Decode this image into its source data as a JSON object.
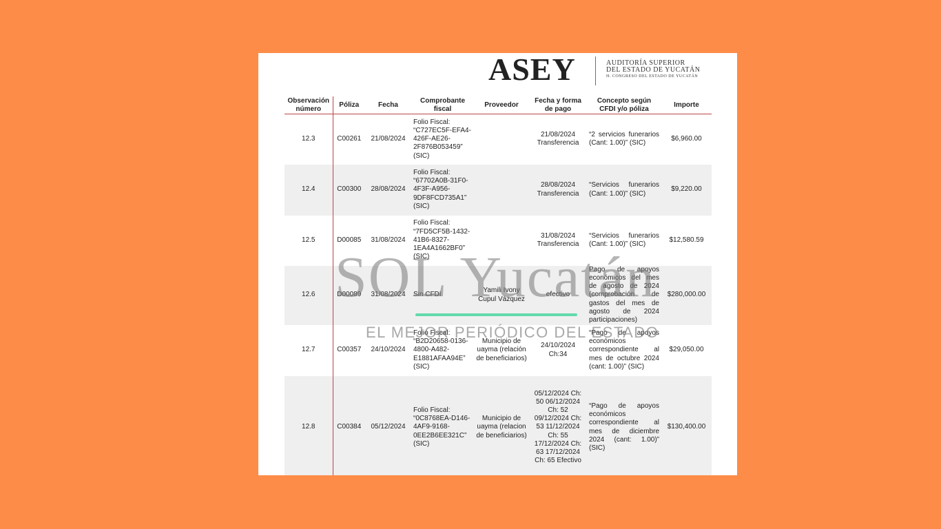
{
  "header": {
    "logo": "ASEY",
    "line1": "AUDITORÍA SUPERIOR",
    "line2": "DEL ESTADO DE YUCATÁN",
    "line3": "H. CONGRESO DEL ESTADO DE YUCATÁN"
  },
  "table": {
    "columns": [
      "Observación número",
      "Póliza",
      "Fecha",
      "Comprobante fiscal",
      "Proveedor",
      "Fecha y forma de pago",
      "Concepto según CFDI y/o póliza",
      "Importe"
    ],
    "rows": [
      {
        "observacion": "12.3",
        "poliza": "C00261",
        "fecha": "21/08/2024",
        "comprobante": "Folio Fiscal: “C727EC5F-EFA4-426F-AE26-2F876B053459” (SIC)",
        "pago": "21/08/2024 Transferencia",
        "concepto": "“2 servicios funerarios (Cant: 1.00)” (SIC)",
        "importe": "$6,960.00"
      },
      {
        "observacion": "12.4",
        "poliza": "C00300",
        "fecha": "28/08/2024",
        "comprobante": "Folio Fiscal: “67702A0B-31F0-4F3F-A956-9DF8FCD735A1” (SIC)",
        "pago": "28/08/2024 Transferencia",
        "concepto": "“Servicios funerarios (Cant: 1.00)” (SIC)",
        "importe": "$9,220.00"
      },
      {
        "observacion": "12.5",
        "poliza": "D00085",
        "fecha": "31/08/2024",
        "comprobante": "Folio Fiscal: “7FD5CF5B-1432-41B6-8327-1EA4A1662BF0” (SIC)",
        "pago": "31/08/2024 Transferencia",
        "concepto": "“Servicios funerarios (Cant: 1.00)” (SIC)",
        "importe": "$12,580.59"
      },
      {
        "observacion": "12.6",
        "poliza": "D00089",
        "fecha": "31/08/2024",
        "comprobante": "Sin CFDI",
        "proveedor": "Yamili Ivony Cupul Vázquez",
        "pago": "efectivo",
        "concepto": "Pago de apoyos económicos del mes de agosto de 2024 (comprobación de gastos del mes de agosto de 2024 participaciones)",
        "importe": "$280,000.00"
      },
      {
        "observacion": "12.7",
        "poliza": "C00357",
        "fecha": "24/10/2024",
        "comprobante": "Folio Fiscal: “B2D20658-0136-4800-A482-E1881AFAA94E” (SIC)",
        "proveedor": "Municipio de uayma (relación de beneficiarios)",
        "pago": "24/10/2024 Ch:34",
        "concepto": "“Pago de apoyos económicos correspondiente al mes de octubre 2024 (cant: 1.00)” (SIC)",
        "importe": "$29,050.00"
      },
      {
        "observacion": "12.8",
        "poliza": "C00384",
        "fecha": "05/12/2024",
        "comprobante": "Folio Fiscal: “0C8768EA-D146-4AF9-9168-0EE2B6EE321C” (SIC)",
        "proveedor": "Municipio de uayma (relacion de beneficiarios)",
        "pago": "05/12/2024 Ch: 50 06/12/2024 Ch: 52 09/12/2024 Ch: 53 11/12/2024 Ch: 55 17/12/2024 Ch: 63 17/12/2024 Ch: 65 Efectivo",
        "concepto": "“Pago de apoyos económicos correspondiente al mes de diciembre 2024 (cant: 1.00)” (SIC)",
        "importe": "$130,400.00"
      }
    ]
  },
  "watermark": {
    "brand": "SOL Yucatán",
    "tagline": "EL MEJOR PERIÓDICO DEL ESTADO"
  }
}
